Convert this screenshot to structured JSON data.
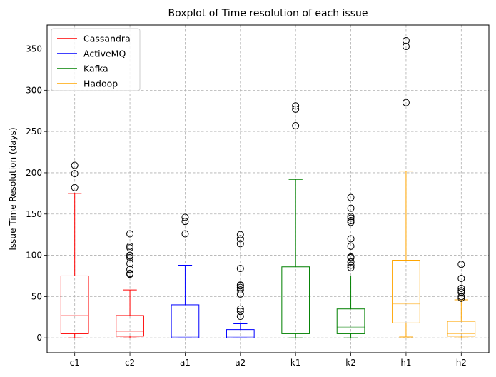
{
  "chart_data": {
    "type": "boxplot",
    "title": "Boxplot of Time resolution of each issue",
    "xlabel": "",
    "ylabel": "Issue Time Resolution (days)",
    "ylim": [
      -18,
      379
    ],
    "yticks": [
      0,
      50,
      100,
      150,
      200,
      250,
      300,
      350
    ],
    "grid": true,
    "legend_position": "top-left",
    "legend": [
      {
        "label": "Cassandra",
        "color": "#ff0000"
      },
      {
        "label": "ActiveMQ",
        "color": "#0000ff"
      },
      {
        "label": "Kafka",
        "color": "#008000"
      },
      {
        "label": "Hadoop",
        "color": "#ffa500"
      }
    ],
    "categories": [
      "c1",
      "c2",
      "a1",
      "a2",
      "k1",
      "k2",
      "h1",
      "h2"
    ],
    "boxes": [
      {
        "category": "c1",
        "color": "#ff0000",
        "whisker_low": 0,
        "q1": 5,
        "median": 27,
        "q3": 75,
        "whisker_high": 175,
        "outliers": [
          182,
          199,
          209
        ]
      },
      {
        "category": "c2",
        "color": "#ff0000",
        "whisker_low": 0,
        "q1": 2,
        "median": 8,
        "q3": 27,
        "whisker_high": 58,
        "outliers": [
          77,
          78,
          83,
          90,
          97,
          99,
          100,
          109,
          111,
          126
        ]
      },
      {
        "category": "a1",
        "color": "#0000ff",
        "whisker_low": 0,
        "q1": 0,
        "median": 2,
        "q3": 40,
        "whisker_high": 88,
        "outliers": [
          126,
          141,
          146
        ]
      },
      {
        "category": "a2",
        "color": "#0000ff",
        "whisker_low": 0,
        "q1": 0,
        "median": 2,
        "q3": 10,
        "whisker_high": 17,
        "outliers": [
          26,
          32,
          35,
          53,
          58,
          61,
          63,
          64,
          84,
          114,
          120,
          125
        ]
      },
      {
        "category": "k1",
        "color": "#008000",
        "whisker_low": 0,
        "q1": 5,
        "median": 24,
        "q3": 86,
        "whisker_high": 192,
        "outliers": [
          257,
          277,
          281
        ]
      },
      {
        "category": "k2",
        "color": "#008000",
        "whisker_low": 0,
        "q1": 5,
        "median": 13,
        "q3": 35,
        "whisker_high": 75,
        "outliers": [
          85,
          88,
          92,
          97,
          98,
          111,
          120,
          140,
          142,
          145,
          147,
          157,
          170
        ]
      },
      {
        "category": "h1",
        "color": "#ffa500",
        "whisker_low": 1,
        "q1": 18,
        "median": 41,
        "q3": 94,
        "whisker_high": 202,
        "outliers": [
          285,
          353,
          360
        ]
      },
      {
        "category": "h2",
        "color": "#ffa500",
        "whisker_low": 0,
        "q1": 2,
        "median": 5,
        "q3": 20,
        "whisker_high": 46,
        "outliers": [
          48,
          50,
          55,
          57,
          60,
          72,
          89
        ]
      }
    ]
  }
}
